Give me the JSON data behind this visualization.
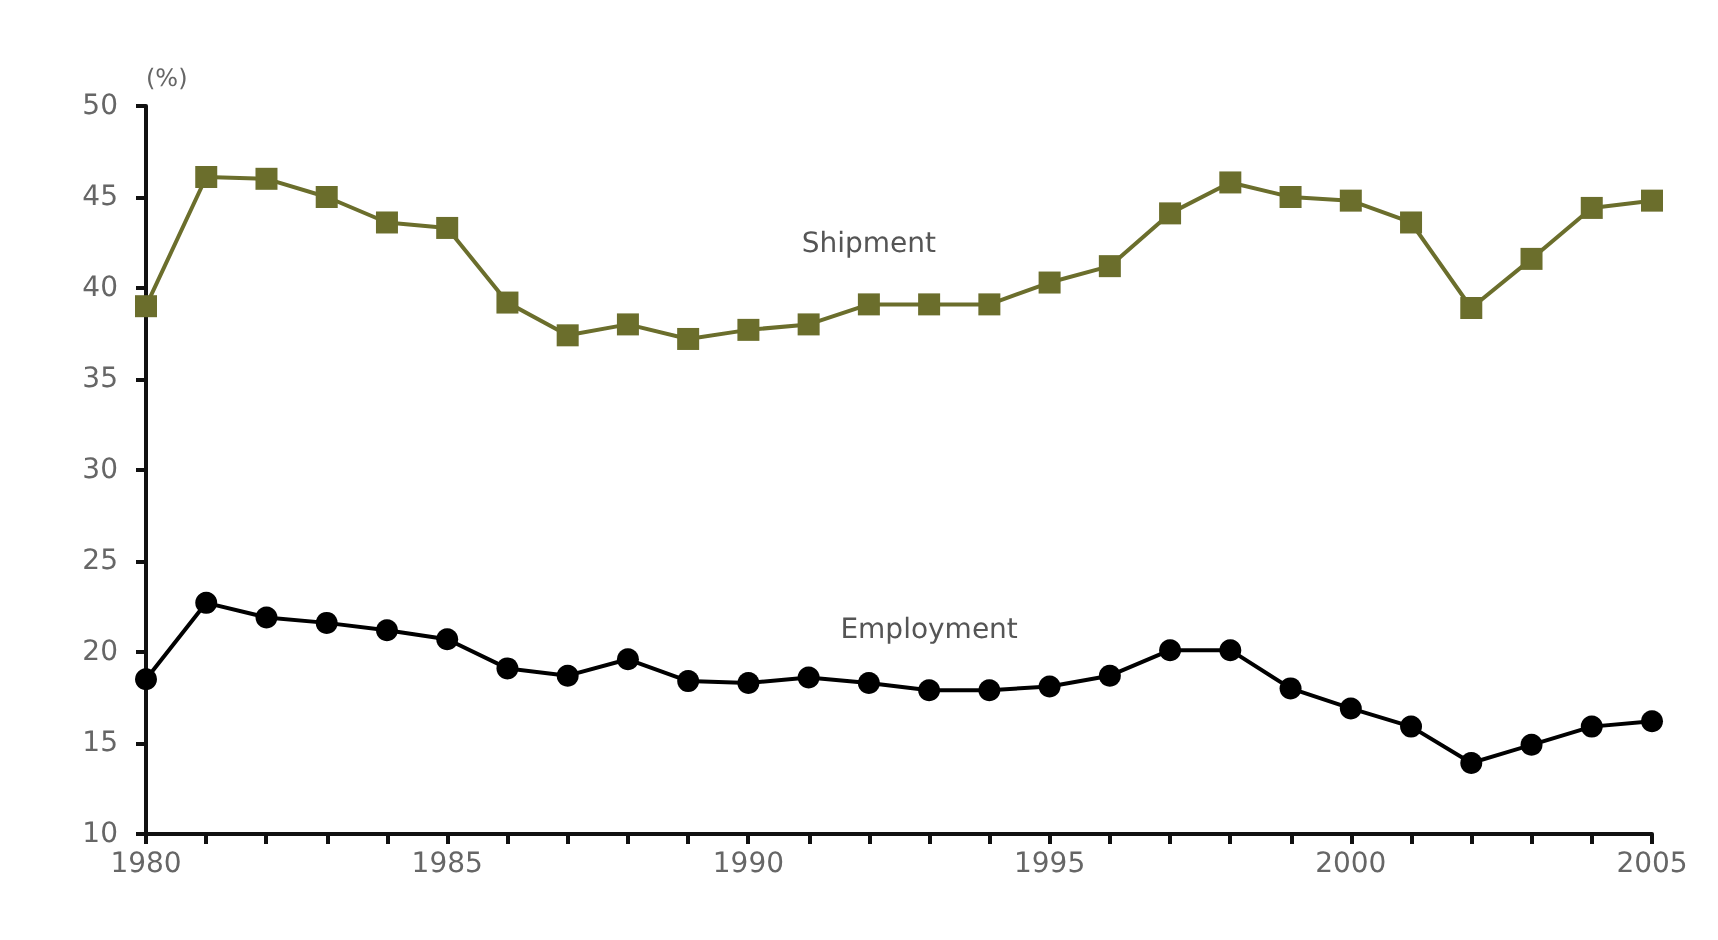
{
  "chart_data": {
    "type": "line",
    "ylabel": "(%)",
    "x": [
      1980,
      1981,
      1982,
      1983,
      1984,
      1985,
      1986,
      1987,
      1988,
      1989,
      1990,
      1991,
      1992,
      1993,
      1994,
      1995,
      1996,
      1997,
      1998,
      1999,
      2000,
      2001,
      2002,
      2003,
      2004,
      2005
    ],
    "series": [
      {
        "name": "Shipment",
        "color": "#6b6e2c",
        "marker": "square",
        "values": [
          39,
          46.1,
          46,
          45,
          43.6,
          43.3,
          39.2,
          37.4,
          38,
          37.2,
          37.7,
          38,
          39.1,
          39.1,
          39.1,
          40.3,
          41.2,
          44.1,
          45.8,
          45,
          44.8,
          43.6,
          38.9,
          41.6,
          44.4,
          44.8
        ]
      },
      {
        "name": "Employment",
        "color": "#000000",
        "marker": "circle",
        "values": [
          18.5,
          22.7,
          21.9,
          21.6,
          21.2,
          20.7,
          19.1,
          18.7,
          19.6,
          18.4,
          18.3,
          18.6,
          18.3,
          17.9,
          17.9,
          18.1,
          18.7,
          20.1,
          20.1,
          18,
          16.9,
          15.9,
          13.9,
          14.9,
          15.9,
          16.2
        ]
      }
    ],
    "xlim": [
      1980,
      2005
    ],
    "xticks": [
      1980,
      {
        "value": 1981,
        "label": null
      },
      {
        "value": 1982,
        "label": null
      },
      {
        "value": 1983,
        "label": null
      },
      {
        "value": 1984,
        "label": null
      },
      1985,
      {
        "value": 1986,
        "label": null
      },
      {
        "value": 1987,
        "label": null
      },
      {
        "value": 1988,
        "label": null
      },
      {
        "value": 1989,
        "label": null
      },
      1990,
      {
        "value": 1991,
        "label": null
      },
      {
        "value": 1992,
        "label": null
      },
      {
        "value": 1993,
        "label": null
      },
      {
        "value": 1994,
        "label": null
      },
      1995,
      {
        "value": 1996,
        "label": null
      },
      {
        "value": 1997,
        "label": null
      },
      {
        "value": 1998,
        "label": null
      },
      {
        "value": 1999,
        "label": null
      },
      2000,
      {
        "value": 2001,
        "label": null
      },
      {
        "value": 2002,
        "label": null
      },
      {
        "value": 2003,
        "label": null
      },
      {
        "value": 2004,
        "label": null
      },
      2005
    ],
    "ylim": [
      10,
      50
    ],
    "yticks": [
      10,
      15,
      20,
      25,
      30,
      35,
      40,
      45,
      50
    ],
    "grid": false,
    "legend": false,
    "line_style": "solid"
  }
}
